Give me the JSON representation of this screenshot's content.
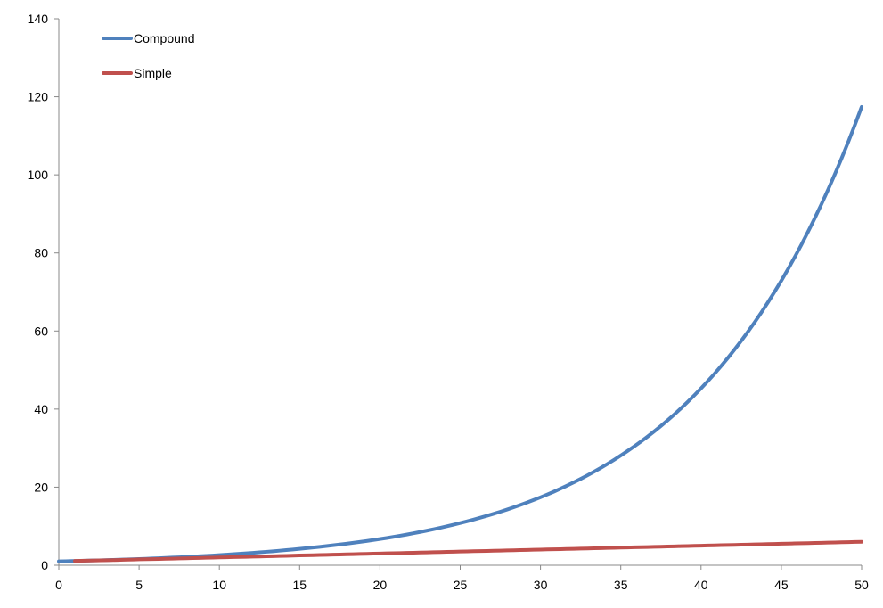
{
  "chart_data": {
    "type": "line",
    "title": "",
    "xlabel": "",
    "ylabel": "",
    "xlim": [
      0,
      50
    ],
    "ylim": [
      0,
      140
    ],
    "x_ticks": [
      0,
      5,
      10,
      15,
      20,
      25,
      30,
      35,
      40,
      45,
      50
    ],
    "y_ticks": [
      0,
      20,
      40,
      60,
      80,
      100,
      120,
      140
    ],
    "x_tick_labels": [
      "0",
      "5",
      "10",
      "15",
      "20",
      "25",
      "30",
      "35",
      "40",
      "45",
      "50"
    ],
    "y_tick_labels": [
      "0",
      "20",
      "40",
      "60",
      "80",
      "100",
      "120",
      "140"
    ],
    "grid": false,
    "legend": {
      "placement": "top-left",
      "entries": [
        "Compound",
        "Simple"
      ]
    },
    "series": [
      {
        "name": "Compound",
        "color": "#4f81bd",
        "x": [
          0,
          5,
          10,
          15,
          20,
          25,
          30,
          35,
          40,
          45,
          50
        ],
        "values": [
          1.0,
          1.6,
          2.6,
          4.2,
          6.7,
          10.8,
          17.4,
          28.1,
          45.3,
          72.9,
          117.4
        ]
      },
      {
        "name": "Simple",
        "color": "#c0504d",
        "x": [
          1,
          5,
          10,
          15,
          20,
          25,
          30,
          35,
          40,
          45,
          50
        ],
        "values": [
          1.1,
          1.5,
          2.0,
          2.5,
          3.0,
          3.5,
          4.0,
          4.5,
          5.0,
          5.5,
          6.0
        ]
      }
    ]
  }
}
